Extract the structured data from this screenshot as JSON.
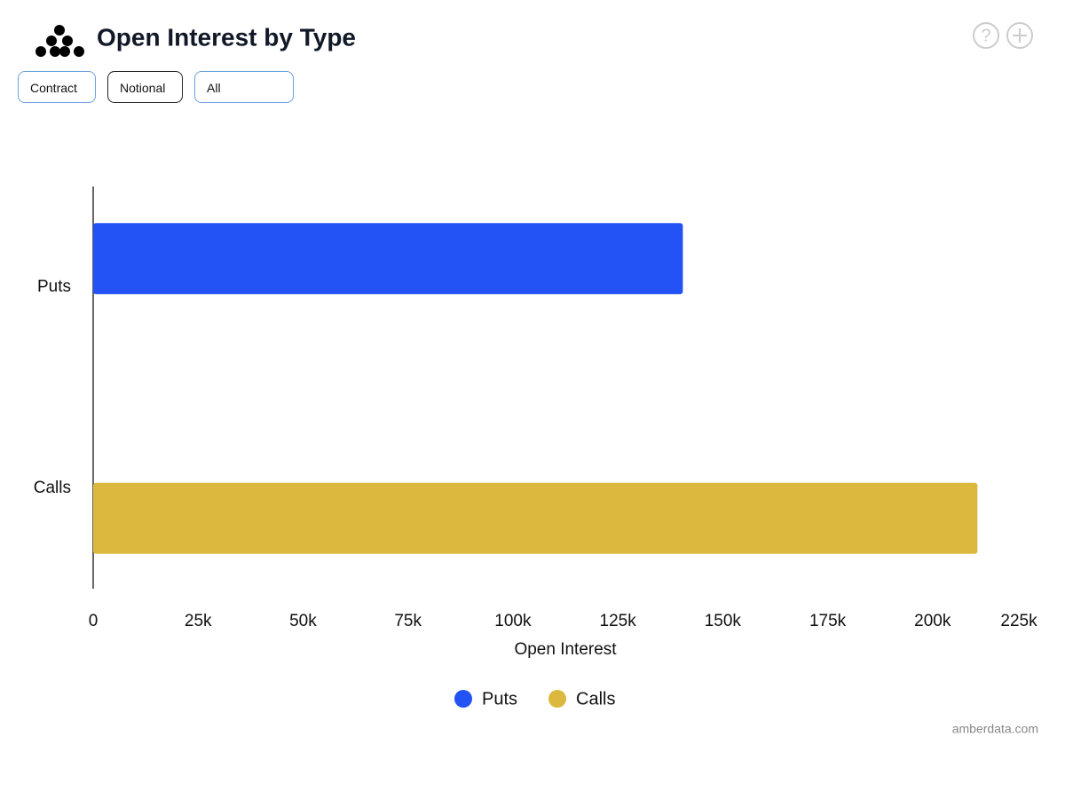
{
  "header": {
    "title": "Open Interest by Type",
    "buttons": [
      "Contract",
      "Notional",
      "All"
    ]
  },
  "chart_data": {
    "type": "bar",
    "orientation": "horizontal",
    "xlabel": "Open Interest",
    "categories": [
      "Puts",
      "Calls"
    ],
    "values": [
      140500,
      210700
    ],
    "colors": [
      "#2352f5",
      "#ddb83f"
    ],
    "xlim": [
      0,
      225000
    ],
    "xticks": [
      0,
      {
        "value": 25000,
        "label": "25k"
      },
      {
        "value": 50000,
        "label": "50k"
      },
      {
        "value": 75000,
        "label": "75k"
      },
      {
        "value": 100000,
        "label": "100k"
      },
      {
        "value": 125000,
        "label": "125k"
      },
      {
        "value": 150000,
        "label": "150k"
      },
      {
        "value": 175000,
        "label": "175k"
      },
      {
        "value": 200000,
        "label": "200k"
      },
      {
        "value": 225000,
        "label": "225k"
      }
    ],
    "grid": false
  },
  "footer": "amberdata.com"
}
